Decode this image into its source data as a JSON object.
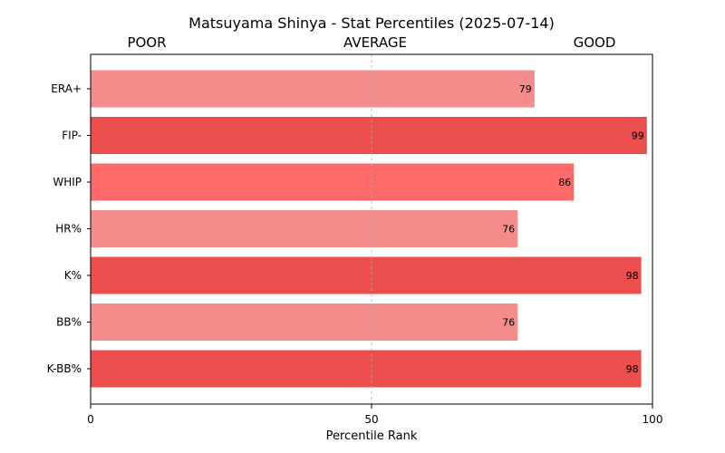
{
  "chart_data": {
    "type": "bar",
    "orientation": "horizontal",
    "title": "Matsuyama Shinya - Stat Percentiles (2025-07-14)",
    "xlabel": "Percentile Rank",
    "ylabel": "",
    "xlim": [
      0,
      100
    ],
    "xticks": [
      "0",
      "50",
      "100"
    ],
    "zone_labels": [
      "POOR",
      "AVERAGE",
      "GOOD"
    ],
    "reference_line": 50,
    "grid": false,
    "categories": [
      "ERA+",
      "FIP-",
      "WHIP",
      "HR%",
      "K%",
      "BB%",
      "K-BB%"
    ],
    "values": [
      79,
      99,
      86,
      76,
      98,
      76,
      98
    ],
    "colors": [
      "#f48c8c",
      "#ec4d4d",
      "#fe6a6a",
      "#f48c8c",
      "#ec4d4d",
      "#f48c8c",
      "#ec4d4d"
    ]
  }
}
